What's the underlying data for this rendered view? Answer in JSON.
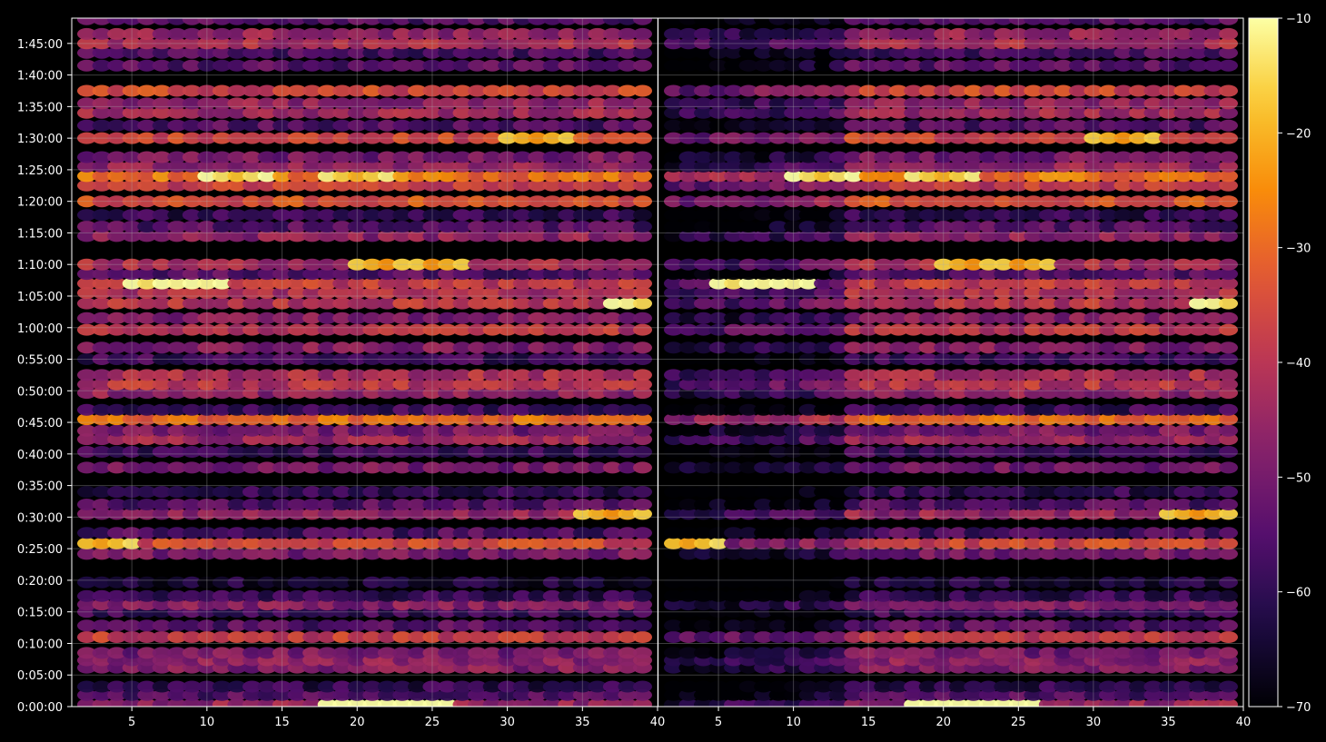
{
  "chart_data": {
    "type": "heatmap",
    "title": "",
    "xlabel": "",
    "ylabel": "",
    "panels": 2,
    "grid": true,
    "x_ticks": [
      "5",
      "10",
      "15",
      "20",
      "25",
      "30",
      "35",
      "40"
    ],
    "x_range": [
      1,
      40
    ],
    "y_ticks": [
      "0:00:00",
      "0:05:00",
      "0:10:00",
      "0:15:00",
      "0:20:00",
      "0:25:00",
      "0:30:00",
      "0:35:00",
      "0:40:00",
      "0:45:00",
      "0:50:00",
      "0:55:00",
      "1:00:00",
      "1:05:00",
      "1:10:00",
      "1:15:00",
      "1:20:00",
      "1:25:00",
      "1:30:00",
      "1:35:00",
      "1:40:00",
      "1:45:00"
    ],
    "y_range_seconds": [
      0,
      6540
    ],
    "colormap": "inferno",
    "colorbar": {
      "ticks": [
        "−10",
        "−20",
        "−30",
        "−40",
        "−50",
        "−60",
        "−70"
      ],
      "range": [
        -70,
        -10
      ]
    },
    "bands": [
      {
        "t": "0:00:20",
        "level": -45,
        "peaks": [
          {
            "x": 20,
            "v": -18
          },
          {
            "x": 21,
            "v": -15
          },
          {
            "x": 22,
            "v": -14
          },
          {
            "x": 23,
            "v": -16
          },
          {
            "x": 24,
            "v": -18
          }
        ]
      },
      {
        "t": "0:01:50",
        "level": -55
      },
      {
        "t": "0:03:10",
        "level": -60
      },
      {
        "t": "0:06:10",
        "level": -48
      },
      {
        "t": "0:07:20",
        "level": -47
      },
      {
        "t": "0:08:30",
        "level": -50
      },
      {
        "t": "0:11:00",
        "level": -38
      },
      {
        "t": "0:12:50",
        "level": -55
      },
      {
        "t": "0:15:00",
        "level": -58
      },
      {
        "t": "0:16:10",
        "level": -48
      },
      {
        "t": "0:17:30",
        "level": -60
      },
      {
        "t": "0:19:40",
        "level": -64
      },
      {
        "t": "0:24:10",
        "level": -50
      },
      {
        "t": "0:25:50",
        "level": -36,
        "peaks": [
          {
            "x": 3,
            "v": -22
          }
        ]
      },
      {
        "t": "0:27:30",
        "level": -56
      },
      {
        "t": "0:30:30",
        "level": -45,
        "peaks": [
          {
            "x": 37,
            "v": -24
          }
        ]
      },
      {
        "t": "0:32:00",
        "level": -55
      },
      {
        "t": "0:34:00",
        "level": -60
      },
      {
        "t": "0:37:50",
        "level": -50
      },
      {
        "t": "0:40:20",
        "level": -58
      },
      {
        "t": "0:42:20",
        "level": -44
      },
      {
        "t": "0:43:40",
        "level": -50
      },
      {
        "t": "0:45:30",
        "level": -30
      },
      {
        "t": "0:47:00",
        "level": -58
      },
      {
        "t": "0:49:40",
        "level": -46
      },
      {
        "t": "0:51:00",
        "level": -40
      },
      {
        "t": "0:52:30",
        "level": -42
      },
      {
        "t": "0:55:00",
        "level": -58
      },
      {
        "t": "0:56:50",
        "level": -48
      },
      {
        "t": "0:59:40",
        "level": -40
      },
      {
        "t": "1:01:30",
        "level": -48
      },
      {
        "t": "1:03:50",
        "level": -40,
        "peaks": [
          {
            "x": 39,
            "v": -15
          }
        ]
      },
      {
        "t": "1:05:30",
        "level": -42
      },
      {
        "t": "1:07:00",
        "level": -38,
        "peaks": [
          {
            "x": 7,
            "v": -18
          },
          {
            "x": 9,
            "v": -15
          }
        ]
      },
      {
        "t": "1:08:30",
        "level": -55
      },
      {
        "t": "1:10:00",
        "level": -42,
        "peaks": [
          {
            "x": 22,
            "v": -24
          },
          {
            "x": 25,
            "v": -24
          }
        ]
      },
      {
        "t": "1:14:30",
        "level": -46
      },
      {
        "t": "1:16:00",
        "level": -55
      },
      {
        "t": "1:17:50",
        "level": -60
      },
      {
        "t": "1:20:00",
        "level": -34
      },
      {
        "t": "1:22:30",
        "level": -38
      },
      {
        "t": "1:24:00",
        "level": -28,
        "peaks": [
          {
            "x": 12,
            "v": -18
          },
          {
            "x": 20,
            "v": -20
          }
        ]
      },
      {
        "t": "1:25:30",
        "level": -45
      },
      {
        "t": "1:27:00",
        "level": -50
      },
      {
        "t": "1:30:00",
        "level": -36,
        "peaks": [
          {
            "x": 32,
            "v": -24
          }
        ]
      },
      {
        "t": "1:32:00",
        "level": -55
      },
      {
        "t": "1:34:00",
        "level": -44
      },
      {
        "t": "1:35:30",
        "level": -46
      },
      {
        "t": "1:37:30",
        "level": -36
      },
      {
        "t": "1:41:30",
        "level": -54
      },
      {
        "t": "1:43:30",
        "level": -56
      },
      {
        "t": "1:45:00",
        "level": -42
      },
      {
        "t": "1:46:30",
        "level": -46
      },
      {
        "t": "1:48:50",
        "level": -55
      }
    ]
  }
}
